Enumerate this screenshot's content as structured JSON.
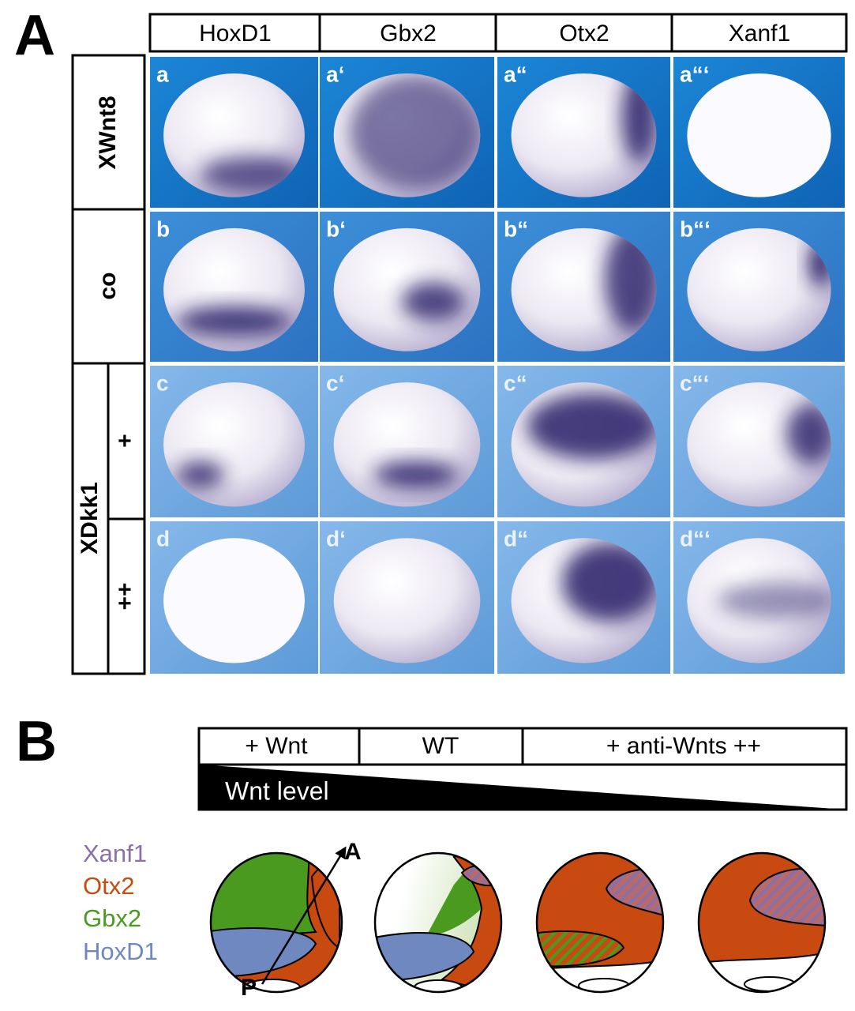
{
  "panel_a": {
    "label": "A",
    "columns": [
      "HoxD1",
      "Gbx2",
      "Otx2",
      "Xanf1"
    ],
    "rows": [
      "XWnt8",
      "co"
    ],
    "group_label": "XDkk1",
    "sub_rows": [
      "+",
      "++"
    ],
    "panel_labels": [
      [
        "a",
        "a‘",
        "a“",
        "a“‘"
      ],
      [
        "b",
        "b‘",
        "b“",
        "b“‘"
      ],
      [
        "c",
        "c‘",
        "c“",
        "c“‘"
      ],
      [
        "d",
        "d‘",
        "d“",
        "d“‘"
      ]
    ]
  },
  "panel_b": {
    "label": "B",
    "conditions": [
      "+ Wnt",
      "WT",
      "+ anti-Wnts ++"
    ],
    "gradient_label": "Wnt level",
    "legend": [
      "Xanf1",
      "Otx2",
      "Gbx2",
      "HoxD1"
    ],
    "axis_anterior": "A",
    "axis_posterior": "P"
  }
}
